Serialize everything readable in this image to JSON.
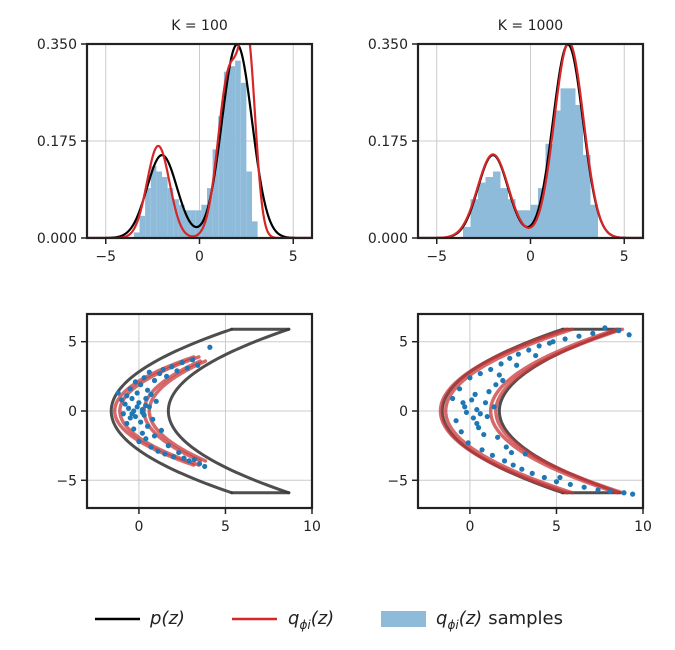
{
  "colors": {
    "p": "#000000",
    "q": "#d62728",
    "samples": "#1f77b4",
    "hist": "#8fbbda",
    "contour_dark": "#3b3b3b",
    "contour_red": "#c8383a",
    "grid": "#cccccc"
  },
  "legend": {
    "p_label": "p(z)",
    "q_label": "q",
    "q_sub": "ϕi",
    "q_arg": "(z)",
    "samples_suffix": "samples"
  },
  "chart_data": [
    {
      "type": "histogram-density",
      "title": "K = 100",
      "xlim": [
        -6,
        6
      ],
      "ylim": [
        0,
        0.35
      ],
      "xticks": [
        -5,
        0,
        5
      ],
      "yticks": [
        0.0,
        0.175,
        0.35
      ],
      "ytick_labels": [
        "0.000",
        "0.175",
        "0.350"
      ],
      "grid": true,
      "hist_bins": {
        "edges": [
          -3.5,
          -3.2,
          -2.9,
          -2.6,
          -2.3,
          -2.0,
          -1.7,
          -1.4,
          -1.1,
          -0.8,
          -0.5,
          -0.2,
          0.1,
          0.4,
          0.7,
          1.0,
          1.3,
          1.6,
          1.9,
          2.2,
          2.5,
          2.8,
          3.1,
          3.4
        ],
        "heights": [
          0.01,
          0.04,
          0.09,
          0.13,
          0.12,
          0.11,
          0.09,
          0.07,
          0.06,
          0.05,
          0.05,
          0.05,
          0.06,
          0.09,
          0.16,
          0.22,
          0.3,
          0.31,
          0.32,
          0.28,
          0.12,
          0.03,
          0.0
        ]
      },
      "p_curve": {
        "mixture": [
          {
            "w": 0.3,
            "mu": -2.0,
            "sigma": 0.8
          },
          {
            "w": 0.7,
            "mu": 2.0,
            "sigma": 0.8
          }
        ]
      },
      "q_curve": {
        "mixture": [
          {
            "w": 0.25,
            "mu": -2.2,
            "sigma": 0.6
          },
          {
            "w": 0.45,
            "mu": 1.6,
            "sigma": 0.6
          },
          {
            "w": 0.3,
            "mu": 2.6,
            "sigma": 0.4
          }
        ]
      }
    },
    {
      "type": "histogram-density",
      "title": "K = 1000",
      "xlim": [
        -6,
        6
      ],
      "ylim": [
        0,
        0.35
      ],
      "xticks": [
        -5,
        0,
        5
      ],
      "yticks": [
        0.0,
        0.175,
        0.35
      ],
      "ytick_labels": [
        "0.000",
        "0.175",
        "0.350"
      ],
      "grid": true,
      "hist_bins": {
        "edges": [
          -3.6,
          -3.2,
          -2.8,
          -2.4,
          -2.0,
          -1.6,
          -1.2,
          -0.8,
          -0.4,
          0.0,
          0.4,
          0.8,
          1.2,
          1.6,
          2.0,
          2.4,
          2.8,
          3.2,
          3.6
        ],
        "heights": [
          0.02,
          0.07,
          0.1,
          0.11,
          0.12,
          0.09,
          0.07,
          0.05,
          0.05,
          0.06,
          0.09,
          0.17,
          0.23,
          0.27,
          0.27,
          0.24,
          0.15,
          0.06
        ]
      },
      "p_curve": {
        "mixture": [
          {
            "w": 0.3,
            "mu": -2.0,
            "sigma": 0.8
          },
          {
            "w": 0.7,
            "mu": 2.0,
            "sigma": 0.8
          }
        ]
      },
      "q_curve": {
        "mixture": [
          {
            "w": 0.31,
            "mu": -2.0,
            "sigma": 0.82
          },
          {
            "w": 0.69,
            "mu": 2.05,
            "sigma": 0.78
          }
        ]
      }
    },
    {
      "type": "scatter-contour",
      "xlim": [
        -3,
        10
      ],
      "ylim": [
        -7,
        7
      ],
      "xticks": [
        0,
        5,
        10
      ],
      "yticks": [
        -5,
        0,
        5
      ],
      "grid": true,
      "p_contours": [
        {
          "a": -1.6,
          "b": 0.2,
          "ymax": 5.9
        },
        {
          "a": 1.7,
          "b": 0.2,
          "ymax": 5.9
        }
      ],
      "q_contours": [
        {
          "a": -1.4,
          "b": 0.3,
          "ymax": 3.9
        },
        {
          "a": -1.1,
          "b": 0.3,
          "ymax": 3.9
        },
        {
          "a": 0.3,
          "b": 0.25,
          "ymax": 3.6
        },
        {
          "a": 0.6,
          "b": 0.25,
          "ymax": 3.6
        }
      ],
      "samples": [
        [
          -1.2,
          1.3
        ],
        [
          -1.0,
          0.8
        ],
        [
          -0.9,
          -0.2
        ],
        [
          -0.8,
          0.5
        ],
        [
          -0.7,
          1.1
        ],
        [
          -0.7,
          -0.9
        ],
        [
          -0.6,
          0.2
        ],
        [
          -0.5,
          -0.5
        ],
        [
          -0.5,
          1.6
        ],
        [
          -0.4,
          0.9
        ],
        [
          -0.3,
          -1.3
        ],
        [
          -0.3,
          0.0
        ],
        [
          -0.2,
          2.1
        ],
        [
          -0.2,
          -0.4
        ],
        [
          -0.1,
          1.3
        ],
        [
          0.0,
          -2.2
        ],
        [
          0.0,
          0.6
        ],
        [
          0.1,
          -0.8
        ],
        [
          0.1,
          1.9
        ],
        [
          0.2,
          0.1
        ],
        [
          0.2,
          -1.6
        ],
        [
          0.3,
          2.4
        ],
        [
          0.3,
          -0.3
        ],
        [
          0.4,
          0.9
        ],
        [
          0.4,
          -2.0
        ],
        [
          0.5,
          1.5
        ],
        [
          0.5,
          -1.1
        ],
        [
          0.6,
          2.8
        ],
        [
          0.6,
          0.3
        ],
        [
          0.7,
          -2.6
        ],
        [
          0.7,
          1.2
        ],
        [
          0.8,
          -0.6
        ],
        [
          0.9,
          2.2
        ],
        [
          0.9,
          -1.8
        ],
        [
          1.0,
          0.7
        ],
        [
          1.1,
          -2.9
        ],
        [
          1.2,
          2.7
        ],
        [
          1.3,
          -1.4
        ],
        [
          1.4,
          3.0
        ],
        [
          1.5,
          -3.1
        ],
        [
          1.6,
          2.5
        ],
        [
          1.7,
          -2.5
        ],
        [
          1.9,
          3.2
        ],
        [
          2.0,
          -3.3
        ],
        [
          2.2,
          2.9
        ],
        [
          2.3,
          -3.0
        ],
        [
          2.5,
          3.5
        ],
        [
          2.6,
          -3.4
        ],
        [
          2.8,
          3.1
        ],
        [
          2.9,
          -3.6
        ],
        [
          3.1,
          3.7
        ],
        [
          3.2,
          -3.5
        ],
        [
          3.4,
          3.3
        ],
        [
          3.5,
          -3.8
        ],
        [
          4.1,
          4.6
        ],
        [
          3.8,
          -4.0
        ],
        [
          0.2,
          -0.1
        ],
        [
          -0.1,
          0.3
        ],
        [
          0.4,
          0.4
        ],
        [
          -0.4,
          -0.2
        ]
      ]
    },
    {
      "type": "scatter-contour",
      "xlim": [
        -3,
        10
      ],
      "ylim": [
        -7,
        7
      ],
      "xticks": [
        0,
        5,
        10
      ],
      "yticks": [
        -5,
        0,
        5
      ],
      "grid": true,
      "p_contours": [
        {
          "a": -1.6,
          "b": 0.2,
          "ymax": 5.9
        },
        {
          "a": 1.7,
          "b": 0.2,
          "ymax": 5.9
        }
      ],
      "q_contours": [
        {
          "a": -1.7,
          "b": 0.21,
          "ymax": 5.9
        },
        {
          "a": -1.4,
          "b": 0.21,
          "ymax": 5.9
        },
        {
          "a": 1.2,
          "b": 0.21,
          "ymax": 5.9
        },
        {
          "a": 1.5,
          "b": 0.21,
          "ymax": 5.9
        }
      ],
      "samples": [
        [
          -1.0,
          0.9
        ],
        [
          -0.8,
          -0.7
        ],
        [
          -0.6,
          1.6
        ],
        [
          -0.5,
          -1.5
        ],
        [
          -0.3,
          0.3
        ],
        [
          -0.1,
          -2.3
        ],
        [
          0.0,
          2.4
        ],
        [
          0.2,
          -0.5
        ],
        [
          0.3,
          1.2
        ],
        [
          0.5,
          -1.2
        ],
        [
          0.6,
          2.7
        ],
        [
          0.7,
          -2.8
        ],
        [
          0.9,
          0.6
        ],
        [
          1.0,
          -0.4
        ],
        [
          1.2,
          3.0
        ],
        [
          1.3,
          -3.2
        ],
        [
          1.5,
          1.9
        ],
        [
          1.6,
          -1.9
        ],
        [
          1.8,
          3.4
        ],
        [
          2.0,
          -3.6
        ],
        [
          2.3,
          3.8
        ],
        [
          2.5,
          -3.9
        ],
        [
          2.8,
          4.1
        ],
        [
          3.0,
          -4.2
        ],
        [
          3.4,
          4.4
        ],
        [
          3.6,
          -4.5
        ],
        [
          4.0,
          4.7
        ],
        [
          4.3,
          -4.8
        ],
        [
          4.8,
          5.0
        ],
        [
          5.0,
          -5.1
        ],
        [
          5.5,
          5.2
        ],
        [
          5.8,
          -5.3
        ],
        [
          6.3,
          5.4
        ],
        [
          6.6,
          -5.5
        ],
        [
          7.1,
          5.6
        ],
        [
          7.4,
          -5.7
        ],
        [
          7.8,
          6.0
        ],
        [
          8.1,
          -5.8
        ],
        [
          8.6,
          5.8
        ],
        [
          9.4,
          -6.0
        ],
        [
          9.2,
          5.5
        ],
        [
          8.9,
          -5.9
        ],
        [
          0.4,
          0.1
        ],
        [
          -0.2,
          -0.1
        ],
        [
          1.1,
          1.4
        ],
        [
          0.8,
          -1.7
        ],
        [
          1.9,
          2.2
        ],
        [
          2.1,
          -2.6
        ],
        [
          0.1,
          0.8
        ],
        [
          0.4,
          -0.9
        ],
        [
          2.7,
          3.3
        ],
        [
          3.2,
          -3.1
        ],
        [
          1.4,
          0.3
        ],
        [
          -0.4,
          0.6
        ],
        [
          0.6,
          -0.2
        ],
        [
          1.7,
          2.6
        ],
        [
          2.4,
          -3.0
        ],
        [
          4.6,
          4.9
        ],
        [
          5.2,
          -4.8
        ],
        [
          3.8,
          4.0
        ]
      ]
    }
  ]
}
